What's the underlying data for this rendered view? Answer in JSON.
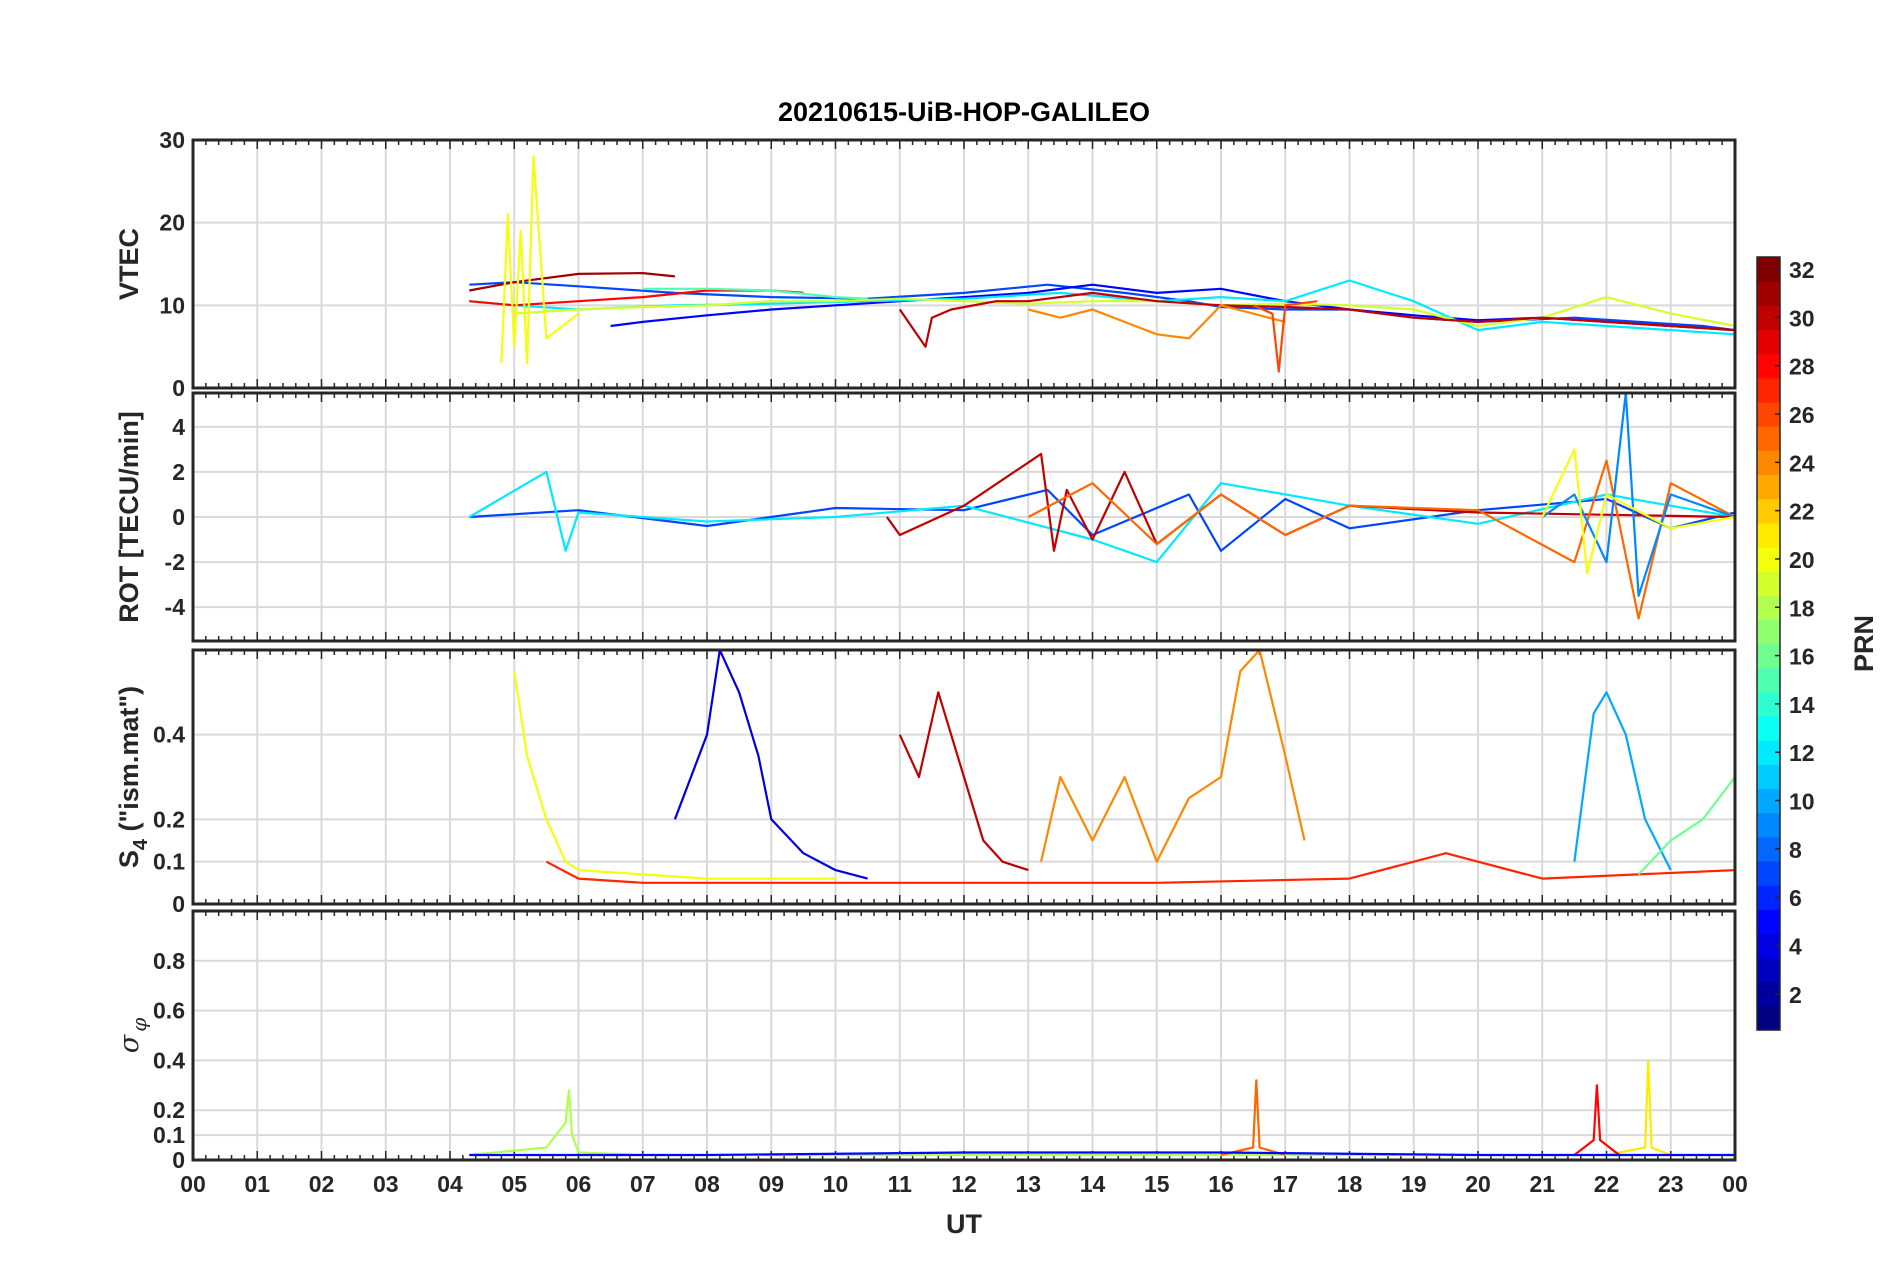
{
  "chart_data": {
    "type": "line",
    "title": "20210615-UiB-HOP-GALILEO",
    "xlabel": "UT",
    "x_range": [
      0,
      24
    ],
    "x_ticks": [
      "00",
      "01",
      "02",
      "03",
      "04",
      "05",
      "06",
      "07",
      "08",
      "09",
      "10",
      "11",
      "12",
      "13",
      "14",
      "15",
      "16",
      "17",
      "18",
      "19",
      "20",
      "21",
      "22",
      "23",
      "00"
    ],
    "colorbar": {
      "label": "PRN",
      "range": [
        1,
        32
      ],
      "ticks": [
        "2",
        "4",
        "6",
        "8",
        "10",
        "12",
        "14",
        "16",
        "18",
        "20",
        "22",
        "24",
        "26",
        "28",
        "30",
        "32"
      ],
      "colormap": "jet"
    },
    "panels": [
      {
        "id": "vtec",
        "ylabel": "VTEC",
        "ylim": [
          0,
          30
        ],
        "y_ticks": [
          "0",
          "10",
          "20",
          "30"
        ],
        "grid": true,
        "series": [
          {
            "prn": 7,
            "x": [
              4.3,
              5.0,
              6.0,
              7.5,
              9.0,
              10.5,
              12.0,
              13.3,
              14.5,
              15.5,
              16.0,
              17.0,
              18.0,
              19.0,
              20.0,
              21.5,
              22.5,
              23.5,
              24.0
            ],
            "y": [
              12.5,
              12.8,
              12.3,
              11.5,
              11.0,
              10.8,
              11.5,
              12.5,
              11.5,
              10.5,
              9.8,
              9.5,
              9.5,
              8.5,
              8.0,
              8.5,
              8.0,
              7.5,
              7.0
            ]
          },
          {
            "prn": 5,
            "x": [
              6.5,
              7.0,
              8.0,
              9.0,
              10.0,
              11.0,
              12.0,
              13.0,
              14.0,
              15.0,
              16.0,
              17.0,
              18.0,
              19.0,
              20.0,
              21.0,
              22.0,
              23.0,
              24.0
            ],
            "y": [
              7.5,
              8.0,
              8.8,
              9.5,
              10.0,
              10.5,
              11.0,
              11.5,
              12.5,
              11.5,
              12.0,
              10.5,
              9.5,
              8.8,
              8.2,
              8.5,
              8.0,
              7.5,
              7.0
            ]
          },
          {
            "prn": 12,
            "x": [
              4.3,
              5.0,
              6.0,
              7.5,
              9.0,
              10.5,
              12.0,
              13.5,
              15.0,
              16.0,
              17.0,
              18.0,
              19.0,
              20.0,
              21.0,
              22.0,
              23.0,
              24.0
            ],
            "y": [
              10.5,
              10.0,
              9.5,
              10.0,
              10.2,
              10.5,
              10.8,
              11.5,
              10.5,
              11.0,
              10.5,
              13.0,
              10.5,
              7.0,
              8.0,
              7.5,
              7.0,
              6.5
            ]
          },
          {
            "prn": 31,
            "x": [
              4.3,
              5.0,
              6.0,
              7.0,
              7.5
            ],
            "y": [
              11.8,
              12.8,
              13.8,
              13.9,
              13.5
            ]
          },
          {
            "prn": 28,
            "x": [
              4.3,
              5.0,
              6.0,
              7.0,
              8.0,
              9.0,
              9.5
            ],
            "y": [
              10.5,
              10.0,
              10.5,
              11.0,
              11.8,
              11.8,
              11.5
            ]
          },
          {
            "prn": 15,
            "x": [
              7.0,
              8.0,
              9.0,
              10.0,
              10.5
            ],
            "y": [
              12.0,
              12.0,
              11.8,
              11.0,
              10.8
            ]
          },
          {
            "prn": 19,
            "x": [
              5.0,
              6.0,
              7.0,
              8.0,
              9.0,
              10.0,
              11.0,
              12.0,
              13.0,
              14.0,
              15.0,
              16.0,
              17.0,
              18.0,
              19.0,
              20.0,
              21.0,
              22.0,
              23.0,
              24.0
            ],
            "y": [
              9.0,
              9.5,
              9.8,
              10.0,
              10.5,
              10.5,
              10.8,
              10.5,
              10.2,
              10.5,
              10.5,
              10.0,
              10.2,
              10.0,
              9.5,
              7.5,
              8.5,
              11.0,
              9.0,
              7.5
            ]
          },
          {
            "prn": 30,
            "x": [
              11.0,
              11.4,
              11.5,
              11.8,
              12.5,
              13.0,
              14.0,
              15.0,
              16.0,
              17.0,
              18.0,
              19.0,
              20.0,
              21.0,
              22.0,
              23.0,
              24.0
            ],
            "y": [
              9.5,
              5.0,
              8.5,
              9.5,
              10.5,
              10.5,
              11.5,
              10.5,
              10.0,
              9.8,
              9.5,
              8.5,
              8.0,
              8.5,
              8.0,
              7.5,
              7.0
            ]
          },
          {
            "prn": 24,
            "x": [
              13.0,
              13.5,
              14.0,
              14.5,
              15.0,
              15.5,
              16.0,
              16.5,
              17.0
            ],
            "y": [
              9.5,
              8.5,
              9.5,
              8.0,
              6.5,
              6.0,
              10.0,
              9.0,
              8.0
            ]
          },
          {
            "prn": 20,
            "x": [
              4.8,
              4.9,
              5.0,
              5.1,
              5.2,
              5.3,
              5.5,
              6.0
            ],
            "y": [
              3.0,
              21.0,
              5.0,
              19.0,
              3.0,
              28.0,
              6.0,
              9.0
            ]
          },
          {
            "prn": 26,
            "x": [
              16.5,
              16.8,
              16.9,
              17.0,
              17.5
            ],
            "y": [
              10.0,
              9.0,
              2.0,
              10.0,
              10.5
            ]
          }
        ]
      },
      {
        "id": "rot",
        "ylabel": "ROT [TECU/min]",
        "ylim": [
          -5.5,
          5.5
        ],
        "y_ticks": [
          "-4",
          "-2",
          "0",
          "2",
          "4"
        ],
        "grid": true,
        "series": [
          {
            "prn": 7,
            "x": [
              4.3,
              6.0,
              8.0,
              10.0,
              12.0,
              13.3,
              14.0,
              15.5,
              16.0,
              17.0,
              18.0,
              20.0,
              22.0,
              23.0,
              24.0
            ],
            "y": [
              0,
              0.3,
              -0.4,
              0.4,
              0.3,
              1.2,
              -0.8,
              1.0,
              -1.5,
              0.8,
              -0.5,
              0.3,
              0.8,
              -0.5,
              0.2
            ]
          },
          {
            "prn": 12,
            "x": [
              4.3,
              5.5,
              5.8,
              6.0,
              8.0,
              10.0,
              12.0,
              14.0,
              15.0,
              16.0,
              18.0,
              20.0,
              22.0,
              24.0
            ],
            "y": [
              0,
              2.0,
              -1.5,
              0.2,
              -0.2,
              0,
              0.5,
              -1.0,
              -2.0,
              1.5,
              0.5,
              -0.3,
              1.0,
              0
            ]
          },
          {
            "prn": 30,
            "x": [
              10.8,
              11.0,
              12.0,
              13.2,
              13.4,
              13.6,
              14.0,
              14.5,
              15.0,
              16.0,
              17.0,
              18.0,
              20.0,
              24.0
            ],
            "y": [
              0,
              -0.8,
              0.5,
              2.8,
              -1.5,
              1.2,
              -1.0,
              2.0,
              -1.2,
              1.0,
              -0.8,
              0.5,
              0.2,
              0
            ]
          },
          {
            "prn": 25,
            "x": [
              13.0,
              14.0,
              15.0,
              16.0,
              17.0,
              18.0,
              20.0,
              21.5,
              22.0,
              22.5,
              23.0,
              24.0
            ],
            "y": [
              0,
              1.5,
              -1.2,
              1.0,
              -0.8,
              0.5,
              0.3,
              -2.0,
              2.5,
              -4.5,
              1.5,
              0
            ]
          },
          {
            "prn": 9,
            "x": [
              21.0,
              21.5,
              22.0,
              22.3,
              22.5,
              23.0,
              24.0
            ],
            "y": [
              0,
              1.0,
              -2.0,
              5.5,
              -3.5,
              1.0,
              0
            ]
          },
          {
            "prn": 20,
            "x": [
              21.0,
              21.5,
              21.7,
              22.0,
              23.0,
              24.0
            ],
            "y": [
              0,
              3.0,
              -2.5,
              1.0,
              -0.5,
              0
            ]
          }
        ]
      },
      {
        "id": "s4",
        "ylabel": "S4 (\"ism.mat\")",
        "ylabel_main": "S",
        "ylabel_sub": "4",
        "ylabel_rest": " (\"ism.mat\")",
        "ylim": [
          0,
          0.6
        ],
        "y_ticks": [
          "0",
          "0.1",
          "0.2",
          "0.4"
        ],
        "grid": true,
        "series": [
          {
            "prn": 20,
            "x": [
              5.0,
              5.2,
              5.5,
              5.8,
              6.0,
              7.0,
              8.0,
              9.0,
              10.0
            ],
            "y": [
              0.55,
              0.35,
              0.2,
              0.1,
              0.08,
              0.07,
              0.06,
              0.06,
              0.06
            ]
          },
          {
            "prn": 4,
            "x": [
              7.5,
              8.0,
              8.2,
              8.5,
              8.8,
              9.0,
              9.5,
              10.0,
              10.5
            ],
            "y": [
              0.2,
              0.4,
              0.6,
              0.5,
              0.35,
              0.2,
              0.12,
              0.08,
              0.06
            ]
          },
          {
            "prn": 30,
            "x": [
              11.0,
              11.3,
              11.6,
              12.0,
              12.3,
              12.6,
              13.0
            ],
            "y": [
              0.4,
              0.3,
              0.5,
              0.3,
              0.15,
              0.1,
              0.08
            ]
          },
          {
            "prn": 24,
            "x": [
              13.2,
              13.5,
              14.0,
              14.5,
              15.0,
              15.5,
              16.0,
              16.3,
              16.6,
              17.0,
              17.3
            ],
            "y": [
              0.1,
              0.3,
              0.15,
              0.3,
              0.1,
              0.25,
              0.3,
              0.55,
              0.6,
              0.35,
              0.15
            ]
          },
          {
            "prn": 10,
            "x": [
              21.5,
              21.8,
              22.0,
              22.3,
              22.6,
              23.0
            ],
            "y": [
              0.1,
              0.45,
              0.5,
              0.4,
              0.2,
              0.08
            ]
          },
          {
            "prn": 27,
            "x": [
              5.5,
              6.0,
              7.0,
              8.0,
              9.0,
              12.0,
              15.0,
              18.0,
              19.5,
              20.0,
              21.0,
              24.0
            ],
            "y": [
              0.1,
              0.06,
              0.05,
              0.05,
              0.05,
              0.05,
              0.05,
              0.06,
              0.12,
              0.1,
              0.06,
              0.08
            ]
          },
          {
            "prn": 16,
            "x": [
              22.5,
              23.0,
              23.5,
              24.0
            ],
            "y": [
              0.07,
              0.15,
              0.2,
              0.3
            ]
          }
        ]
      },
      {
        "id": "sigma",
        "ylabel": "σ φ",
        "ylabel_main": "σ",
        "ylabel_sub": "φ",
        "ylim": [
          0,
          1
        ],
        "y_ticks": [
          "0",
          "0.1",
          "0.2",
          "0.4",
          "0.6",
          "0.8"
        ],
        "grid": true,
        "series": [
          {
            "prn": 18,
            "x": [
              4.3,
              5.5,
              5.8,
              5.85,
              5.9,
              6.0,
              7.0,
              24.0
            ],
            "y": [
              0.02,
              0.05,
              0.15,
              0.28,
              0.1,
              0.03,
              0.02,
              0.02
            ]
          },
          {
            "prn": 25,
            "x": [
              16.0,
              16.5,
              16.55,
              16.6,
              17.0
            ],
            "y": [
              0.02,
              0.05,
              0.32,
              0.05,
              0.02
            ]
          },
          {
            "prn": 21,
            "x": [
              22.0,
              22.6,
              22.65,
              22.7,
              23.0
            ],
            "y": [
              0.02,
              0.05,
              0.4,
              0.05,
              0.02
            ]
          },
          {
            "prn": 28,
            "x": [
              21.5,
              21.8,
              21.85,
              21.9,
              22.2
            ],
            "y": [
              0.02,
              0.08,
              0.3,
              0.08,
              0.02
            ]
          },
          {
            "prn": 5,
            "x": [
              4.3,
              8.0,
              12.0,
              16.0,
              20.0,
              24.0
            ],
            "y": [
              0.02,
              0.02,
              0.03,
              0.03,
              0.02,
              0.02
            ]
          }
        ]
      }
    ]
  }
}
